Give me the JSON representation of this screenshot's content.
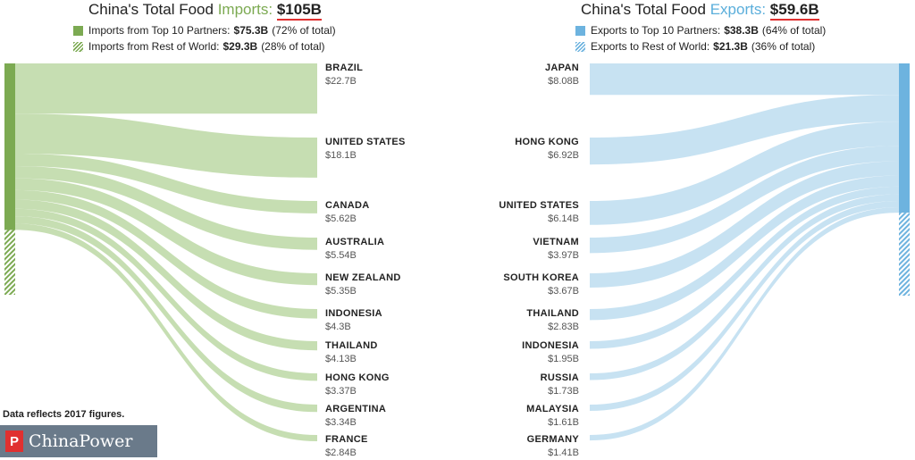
{
  "imports": {
    "title_prefix": "China's Total Food",
    "title_keyword": "Imports:",
    "total": "$105B",
    "legend_top_text": "Imports from Top 10 Partners:",
    "legend_top_value": "$75.3B",
    "legend_top_share": "(72% of total)",
    "legend_rest_text": "Imports from Rest of World:",
    "legend_rest_value": "$29.3B",
    "legend_rest_share": "(28% of total)"
  },
  "exports": {
    "title_prefix": "China's Total Food",
    "title_keyword": "Exports:",
    "total": "$59.6B",
    "legend_top_text": "Exports to Top 10 Partners:",
    "legend_top_value": "$38.3B",
    "legend_top_share": "(64% of total)",
    "legend_rest_text": "Exports to Rest of World:",
    "legend_rest_value": "$21.3B",
    "legend_rest_share": "(36% of total)"
  },
  "footer": {
    "note": "Data reflects 2017 figures.",
    "logo_text": "ChinaPower",
    "logo_mark": "P"
  },
  "colors": {
    "import_bar": "#7caa52",
    "import_flow": "#c3dcae",
    "export_bar": "#6db3df",
    "export_flow": "#c4e0f1"
  },
  "chart_data": [
    {
      "type": "sankey",
      "title": "China's Total Food Imports: $105B",
      "unit": "$B",
      "total": 105,
      "top10_total": 75.3,
      "rest_of_world": 29.3,
      "categories": [
        "BRAZIL",
        "UNITED STATES",
        "CANADA",
        "AUSTRALIA",
        "NEW ZEALAND",
        "INDONESIA",
        "THAILAND",
        "HONG KONG",
        "ARGENTINA",
        "FRANCE"
      ],
      "values": [
        22.7,
        18.1,
        5.62,
        5.54,
        5.35,
        4.3,
        4.13,
        3.37,
        3.34,
        2.84
      ],
      "value_labels": [
        "$22.7B",
        "$18.1B",
        "$5.62B",
        "$5.54B",
        "$5.35B",
        "$4.3B",
        "$4.13B",
        "$3.37B",
        "$3.34B",
        "$2.84B"
      ]
    },
    {
      "type": "sankey",
      "title": "China's Total Food Exports: $59.6B",
      "unit": "$B",
      "total": 59.6,
      "top10_total": 38.3,
      "rest_of_world": 21.3,
      "categories": [
        "JAPAN",
        "HONG KONG",
        "UNITED STATES",
        "VIETNAM",
        "SOUTH KOREA",
        "THAILAND",
        "INDONESIA",
        "RUSSIA",
        "MALAYSIA",
        "GERMANY"
      ],
      "values": [
        8.08,
        6.92,
        6.14,
        3.97,
        3.67,
        2.83,
        1.95,
        1.73,
        1.61,
        1.41
      ],
      "value_labels": [
        "$8.08B",
        "$6.92B",
        "$6.14B",
        "$3.97B",
        "$3.67B",
        "$2.83B",
        "$1.95B",
        "$1.73B",
        "$1.61B",
        "$1.41B"
      ]
    }
  ]
}
